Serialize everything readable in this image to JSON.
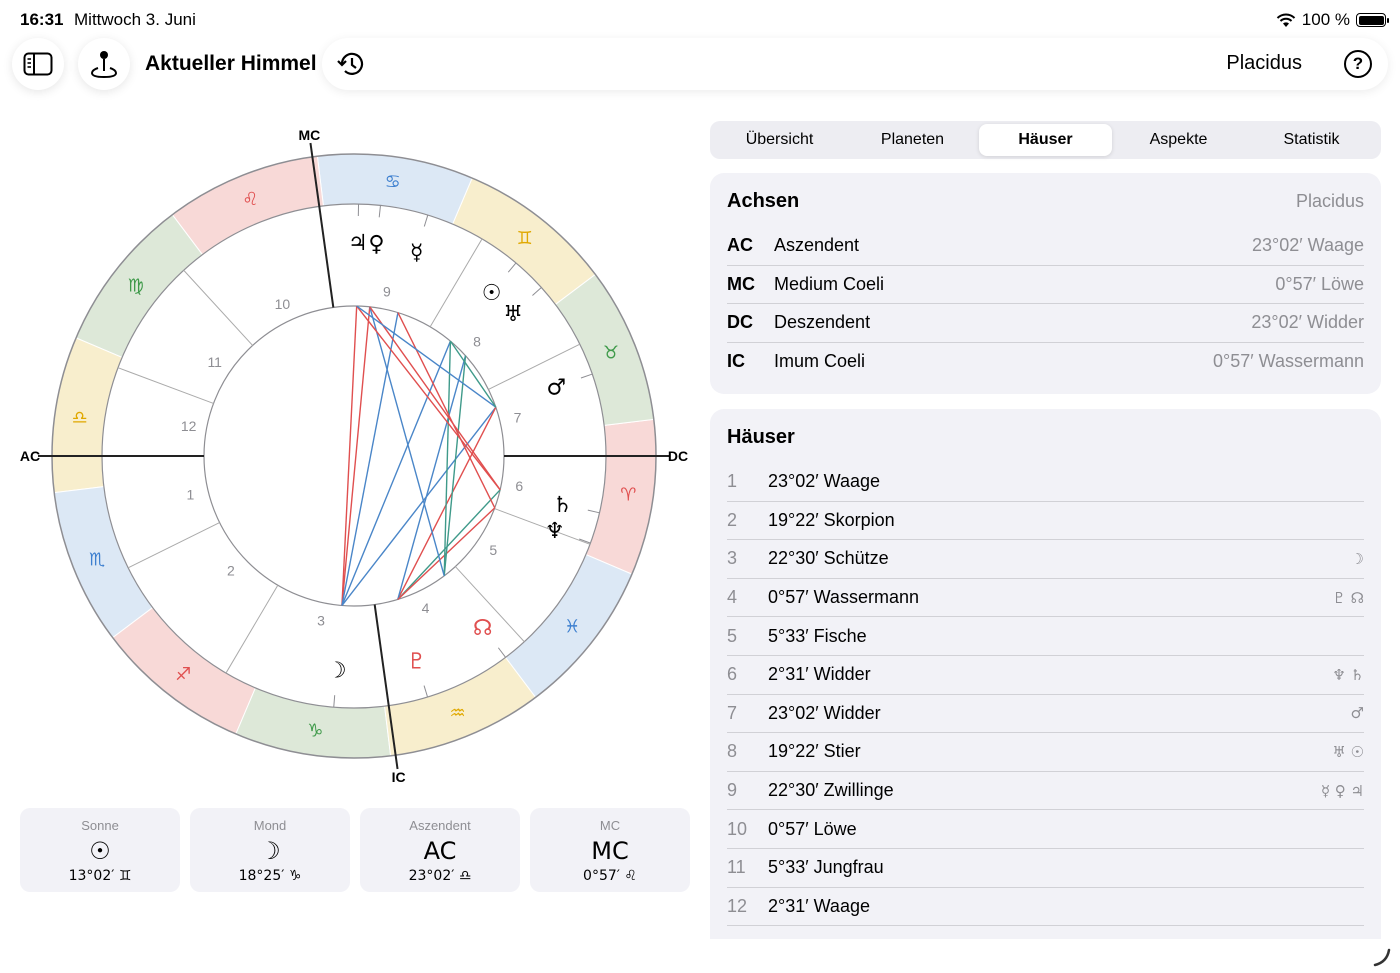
{
  "status": {
    "time": "16:31",
    "date": "Mittwoch 3. Juni",
    "battery": "100 %"
  },
  "header": {
    "title": "Aktueller Himmel",
    "house_system": "Placidus",
    "help": "?"
  },
  "tabs": [
    {
      "label": "Übersicht",
      "active": false
    },
    {
      "label": "Planeten",
      "active": false
    },
    {
      "label": "Häuser",
      "active": true
    },
    {
      "label": "Aspekte",
      "active": false
    },
    {
      "label": "Statistik",
      "active": false
    }
  ],
  "axes": {
    "title": "Achsen",
    "system": "Placidus",
    "rows": [
      {
        "abbr": "AC",
        "name": "Aszendent",
        "position": "23°02′ Waage"
      },
      {
        "abbr": "MC",
        "name": "Medium Coeli",
        "position": "0°57′ Löwe"
      },
      {
        "abbr": "DC",
        "name": "Deszendent",
        "position": "23°02′ Widder"
      },
      {
        "abbr": "IC",
        "name": "Imum Coeli",
        "position": "0°57′ Wassermann"
      }
    ]
  },
  "houses": {
    "title": "Häuser",
    "rows": [
      {
        "num": "1",
        "position": "23°02′ Waage",
        "planets": ""
      },
      {
        "num": "2",
        "position": "19°22′ Skorpion",
        "planets": ""
      },
      {
        "num": "3",
        "position": "22°30′ Schütze",
        "planets": "☽"
      },
      {
        "num": "4",
        "position": "0°57′ Wassermann",
        "planets": "♇ ☊"
      },
      {
        "num": "5",
        "position": "5°33′ Fische",
        "planets": ""
      },
      {
        "num": "6",
        "position": "2°31′ Widder",
        "planets": "♆ ♄"
      },
      {
        "num": "7",
        "position": "23°02′ Widder",
        "planets": "♂"
      },
      {
        "num": "8",
        "position": "19°22′ Stier",
        "planets": "♅ ☉"
      },
      {
        "num": "9",
        "position": "22°30′ Zwillinge",
        "planets": "☿ ♀ ♃"
      },
      {
        "num": "10",
        "position": "0°57′ Löwe",
        "planets": ""
      },
      {
        "num": "11",
        "position": "5°33′ Jungfrau",
        "planets": ""
      },
      {
        "num": "12",
        "position": "2°31′ Waage",
        "planets": ""
      }
    ]
  },
  "cards": [
    {
      "label": "Sonne",
      "symbol": "☉",
      "value": "13°02′ ♊"
    },
    {
      "label": "Mond",
      "symbol": "☽",
      "value": "18°25′ ♑"
    },
    {
      "label": "Aszendent",
      "symbol": "AC",
      "value": "23°02′ ♎"
    },
    {
      "label": "MC",
      "symbol": "MC",
      "value": "0°57′ ♌"
    }
  ],
  "wheel": {
    "axis_labels": {
      "ac": "AC",
      "dc": "DC",
      "mc": "MC",
      "ic": "IC"
    },
    "ascendant_lon": 203.03,
    "mc_lon": 120.95,
    "signs": [
      {
        "name": "aries",
        "glyph": "♈",
        "fill": "#f8d9d7",
        "color": "#e04f4f"
      },
      {
        "name": "taurus",
        "glyph": "♉",
        "fill": "#dde8d8",
        "color": "#3f9a4a"
      },
      {
        "name": "gemini",
        "glyph": "♊",
        "fill": "#f8eecd",
        "color": "#e0a800"
      },
      {
        "name": "cancer",
        "glyph": "♋",
        "fill": "#dce8f5",
        "color": "#3d7fcf"
      },
      {
        "name": "leo",
        "glyph": "♌",
        "fill": "#f8d9d7",
        "color": "#e04f4f"
      },
      {
        "name": "virgo",
        "glyph": "♍",
        "fill": "#dde8d8",
        "color": "#3f9a4a"
      },
      {
        "name": "libra",
        "glyph": "♎",
        "fill": "#f8eecd",
        "color": "#e0a800"
      },
      {
        "name": "scorpio",
        "glyph": "♏",
        "fill": "#dce8f5",
        "color": "#3d7fcf"
      },
      {
        "name": "sagittarius",
        "glyph": "♐",
        "fill": "#f8d9d7",
        "color": "#e04f4f"
      },
      {
        "name": "capricorn",
        "glyph": "♑",
        "fill": "#dde8d8",
        "color": "#3f9a4a"
      },
      {
        "name": "aquarius",
        "glyph": "♒",
        "fill": "#f8eecd",
        "color": "#e0a800"
      },
      {
        "name": "pisces",
        "glyph": "♓",
        "fill": "#dce8f5",
        "color": "#3d7fcf"
      }
    ],
    "house_cusps": [
      203.03,
      229.37,
      262.5,
      300.95,
      335.55,
      2.52,
      23.03,
      49.37,
      82.5,
      120.95,
      155.55,
      182.52
    ],
    "house_numbers": [
      "1",
      "2",
      "3",
      "4",
      "5",
      "6",
      "7",
      "8",
      "9",
      "10",
      "11",
      "12"
    ],
    "planets": [
      {
        "name": "sun",
        "glyph": "☉",
        "lon": 73.03,
        "color": "#000000"
      },
      {
        "name": "moon",
        "glyph": "☽",
        "lon": 288.42,
        "color": "#000000"
      },
      {
        "name": "mercury",
        "glyph": "☿",
        "lon": 96,
        "color": "#000000"
      },
      {
        "name": "venus",
        "glyph": "♀",
        "lon": 107,
        "color": "#000000"
      },
      {
        "name": "jupiter",
        "glyph": "♃",
        "lon": 112,
        "color": "#000000"
      },
      {
        "name": "mars",
        "glyph": "♂",
        "lon": 42,
        "color": "#000000"
      },
      {
        "name": "saturn",
        "glyph": "♄",
        "lon": 10,
        "color": "#000000"
      },
      {
        "name": "uranus",
        "glyph": "♅",
        "lon": 65,
        "color": "#000000"
      },
      {
        "name": "neptune",
        "glyph": "♆",
        "lon": 2.8,
        "color": "#000000"
      },
      {
        "name": "pluto",
        "glyph": "♇",
        "lon": 310,
        "color": "#e04f4f"
      },
      {
        "name": "node",
        "glyph": "☊",
        "lon": 330,
        "color": "#e04f4f"
      }
    ],
    "aspects": [
      {
        "a": "moon",
        "b": "jupiter",
        "color": "#e04f4f"
      },
      {
        "a": "moon",
        "b": "venus",
        "color": "#e04f4f"
      },
      {
        "a": "moon",
        "b": "mercury",
        "color": "#4a86c8"
      },
      {
        "a": "moon",
        "b": "sun",
        "color": "#4a86c8"
      },
      {
        "a": "moon",
        "b": "mars",
        "color": "#4a86c8"
      },
      {
        "a": "pluto",
        "b": "mars",
        "color": "#e04f4f"
      },
      {
        "a": "pluto",
        "b": "saturn",
        "color": "#3f9a8a"
      },
      {
        "a": "pluto",
        "b": "uranus",
        "color": "#4a86c8"
      },
      {
        "a": "pluto",
        "b": "neptune",
        "color": "#e04f4f"
      },
      {
        "a": "node",
        "b": "sun",
        "color": "#3f9a8a"
      },
      {
        "a": "node",
        "b": "uranus",
        "color": "#3f9a8a"
      },
      {
        "a": "node",
        "b": "venus",
        "color": "#4a86c8"
      },
      {
        "a": "saturn",
        "b": "jupiter",
        "color": "#e04f4f"
      },
      {
        "a": "saturn",
        "b": "venus",
        "color": "#e04f4f"
      },
      {
        "a": "neptune",
        "b": "mercury",
        "color": "#e04f4f"
      },
      {
        "a": "mars",
        "b": "jupiter",
        "color": "#4a86c8"
      },
      {
        "a": "mars",
        "b": "sun",
        "color": "#3f9a8a"
      }
    ]
  }
}
